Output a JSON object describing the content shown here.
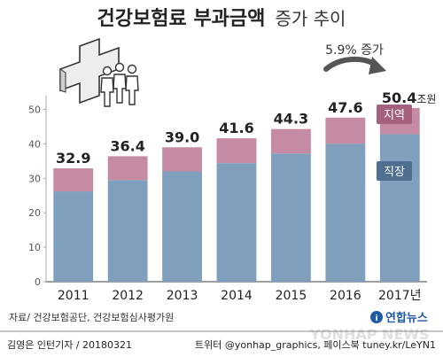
{
  "header": {
    "title_bold": "건강보험료 부과금액",
    "title_rest": "증가 추이"
  },
  "annotation": {
    "growth_text": "5.9% 증가"
  },
  "source_text": "자료/ 건강보험공단, 건강보험심사평가원",
  "footer": {
    "credit": "김영은 인턴기자 / 20180321",
    "social": "트위터 @yonhap_graphics, 페이스북 tuney.kr/LeYN1"
  },
  "brand": {
    "name": "연합뉴스",
    "watermark": "YONHAP NEWS"
  },
  "colors": {
    "workplace": "#7f9fbd",
    "regional": "#c58aa4",
    "label_box_workplace": "#4e6f92",
    "label_box_regional": "#a55f7f",
    "background": "#ffffff"
  },
  "chart_data": {
    "type": "bar",
    "stacked": true,
    "categories": [
      "2011",
      "2012",
      "2013",
      "2014",
      "2015",
      "2016",
      "2017년"
    ],
    "series": [
      {
        "name": "직장",
        "values": [
          26.2,
          29.5,
          32.0,
          34.4,
          37.2,
          40.0,
          42.8
        ]
      },
      {
        "name": "지역",
        "values": [
          6.7,
          6.9,
          7.0,
          7.2,
          7.1,
          7.6,
          7.6
        ]
      }
    ],
    "totals": [
      32.9,
      36.4,
      39.0,
      41.6,
      44.3,
      47.6,
      50.4
    ],
    "total_labels": [
      "32.9",
      "36.4",
      "39.0",
      "41.6",
      "44.3",
      "47.6",
      "50.4"
    ],
    "last_total_unit": "조원",
    "yticks": [
      0,
      10,
      20,
      30,
      40,
      50
    ],
    "ylim": [
      0,
      55
    ],
    "grid": false
  }
}
